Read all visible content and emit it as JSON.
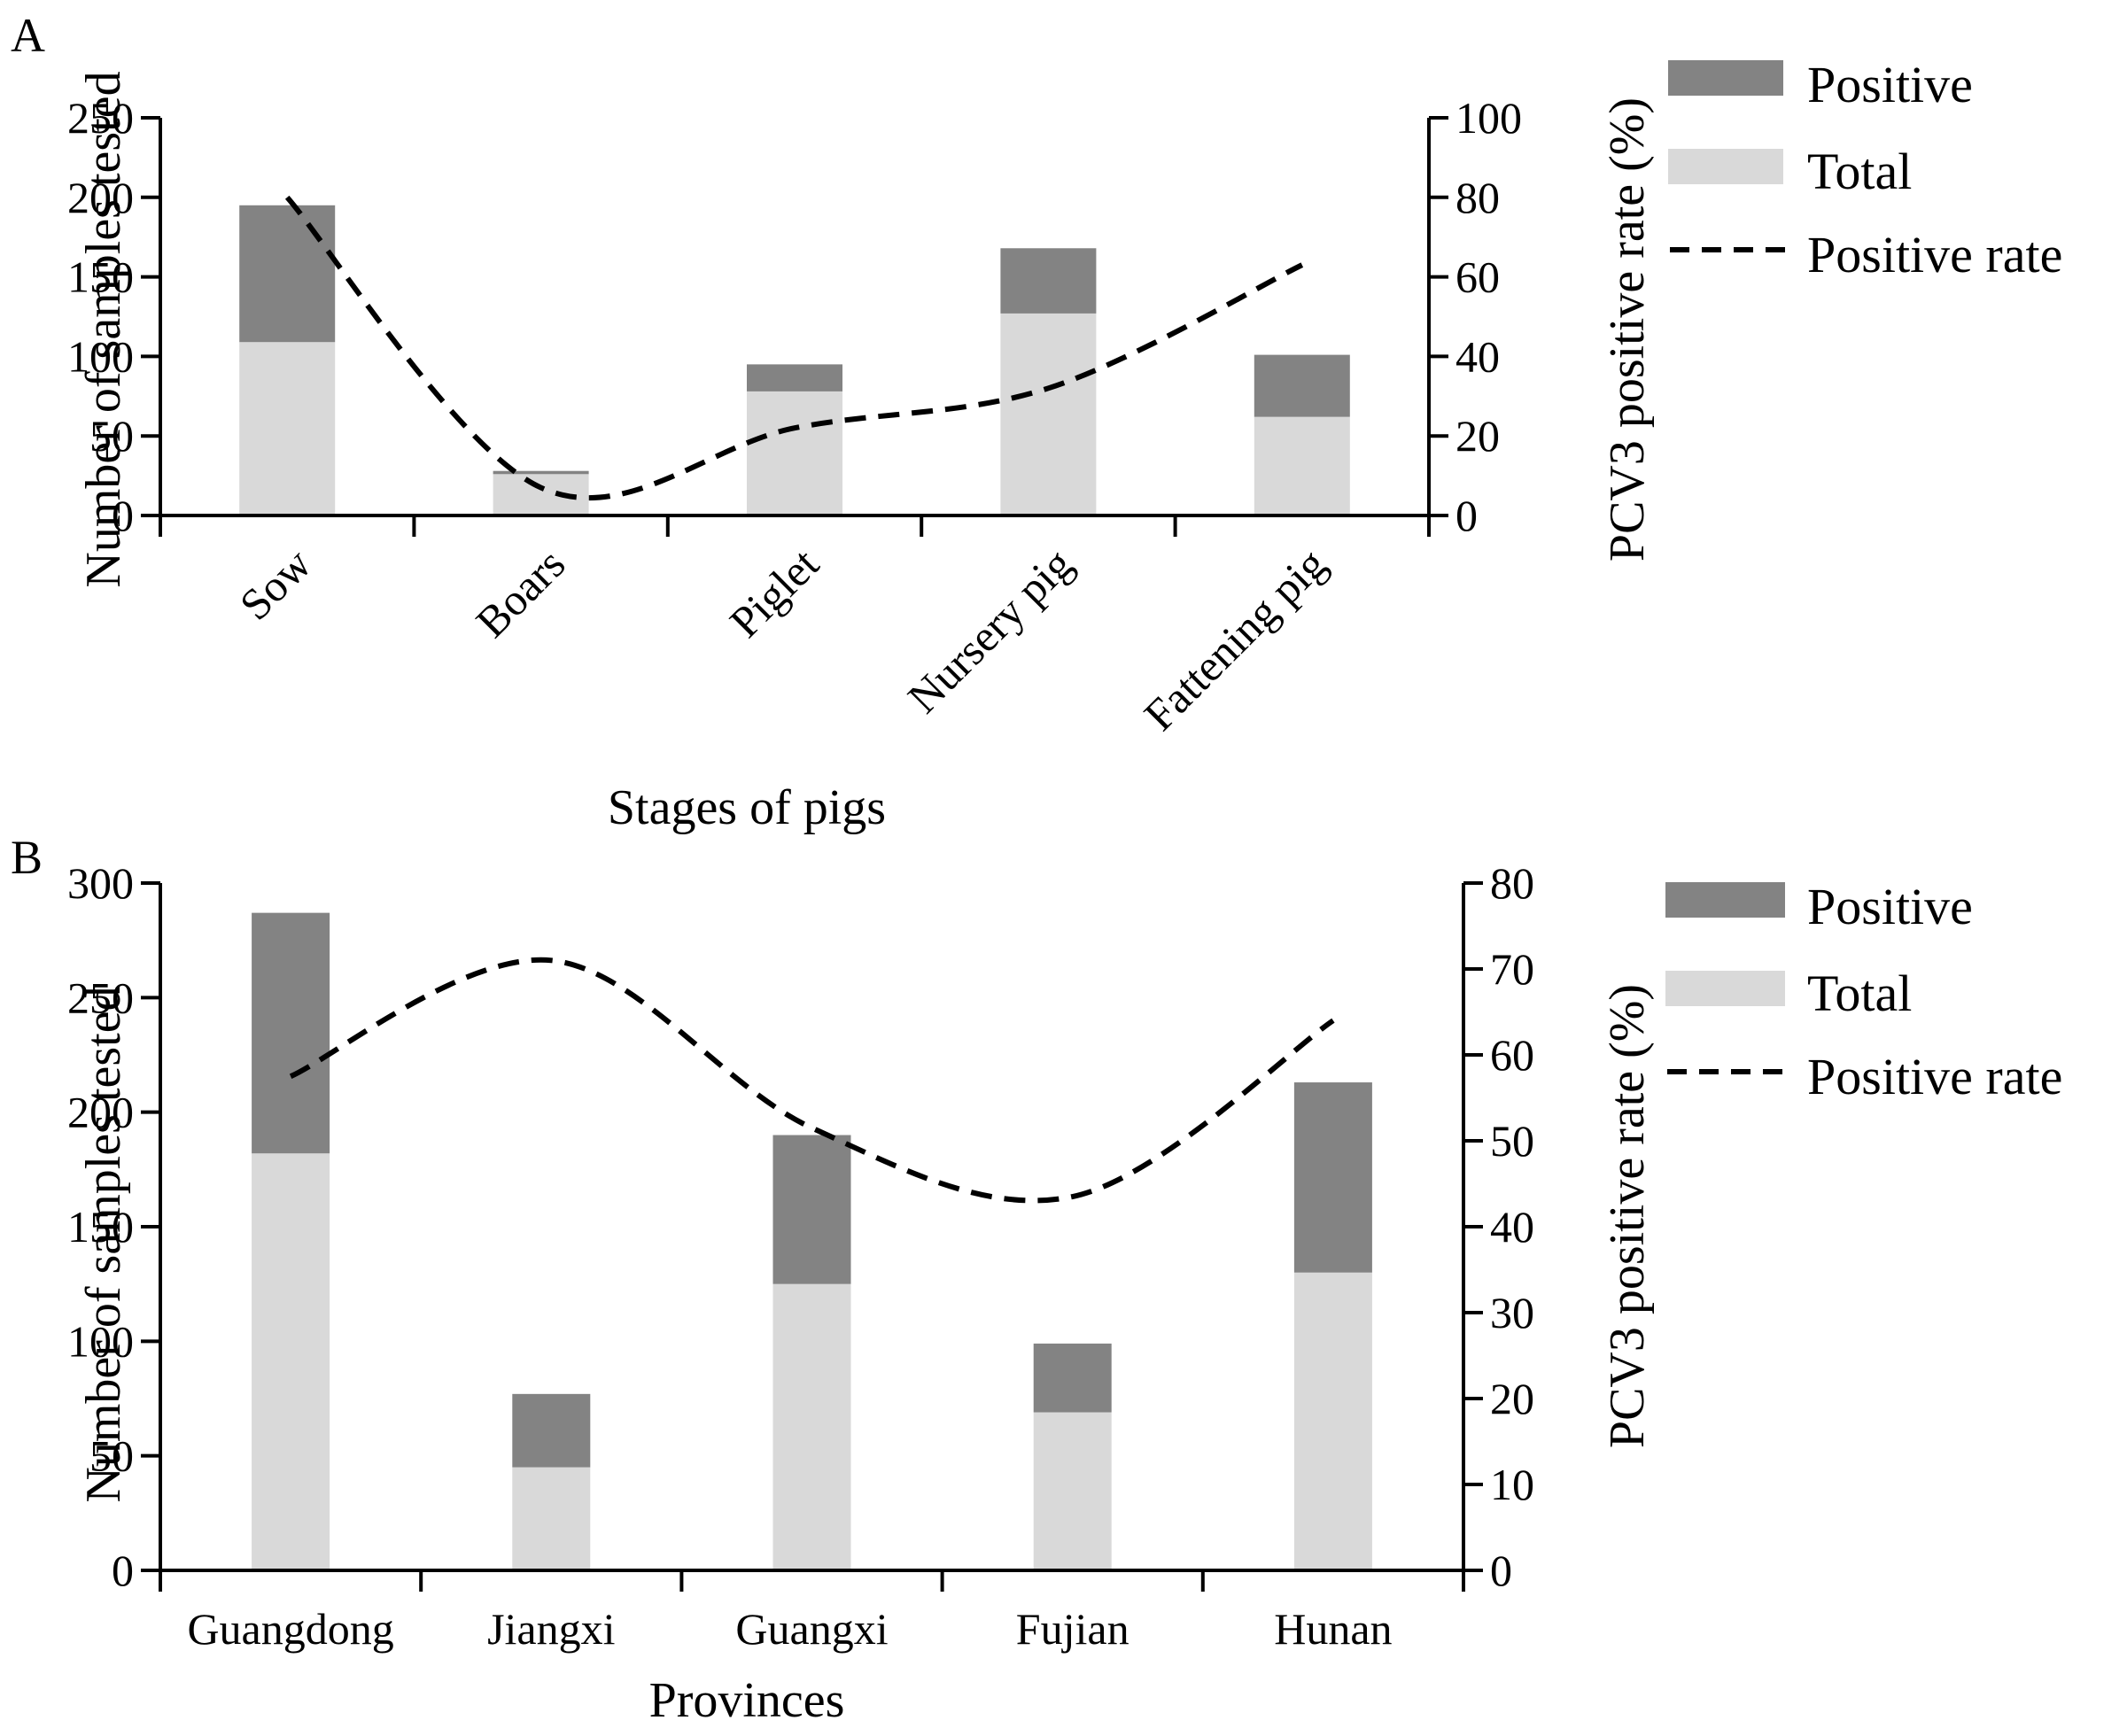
{
  "colors": {
    "positive": "#838383",
    "total": "#d9d9d9",
    "rate_line": "#000000",
    "axis": "#000000"
  },
  "legend": {
    "positive": "Positive",
    "total": "Total",
    "rate": "Positive rate"
  },
  "chart_data": [
    {
      "panel": "A",
      "type": "bar",
      "stacked": true,
      "title": "",
      "xlabel": "Stages of pigs",
      "ylabel": "Number of samples tested",
      "y2label": "PCV3 positive rate (%)",
      "categories": [
        "Sow",
        "Boars",
        "Piglet",
        "Nursery pig",
        "Fattening pig"
      ],
      "ylim": [
        0,
        250
      ],
      "yticks": [
        "0",
        "50",
        "100",
        "150",
        "200",
        "250"
      ],
      "y2lim": [
        0,
        100
      ],
      "y2ticks": [
        "0",
        "20",
        "40",
        "60",
        "80",
        "100"
      ],
      "x_tick_rotation": "rotated -45",
      "series": [
        {
          "name": "Total",
          "type": "bar",
          "axis": "left",
          "values": [
            109,
            26,
            78,
            127,
            62
          ]
        },
        {
          "name": "Positive",
          "type": "bar",
          "axis": "left",
          "stacked_on": "Total",
          "values": [
            86,
            2,
            17,
            41,
            39
          ]
        },
        {
          "name": "Positive rate",
          "type": "line",
          "style": "dashed",
          "axis": "right",
          "values": [
            80,
            7,
            22,
            32,
            63
          ]
        }
      ],
      "legend_position": "right",
      "grid": false
    },
    {
      "panel": "B",
      "type": "bar",
      "stacked": true,
      "title": "",
      "xlabel": "Provinces",
      "ylabel": "Number of samples tested",
      "y2label": "PCV3 positive rate (%)",
      "categories": [
        "Guangdong",
        "Jiangxi",
        "Guangxi",
        "Fujian",
        "Hunan"
      ],
      "ylim": [
        0,
        300
      ],
      "yticks": [
        "0",
        "50",
        "100",
        "150",
        "200",
        "250",
        "300"
      ],
      "y2lim": [
        0,
        80
      ],
      "y2ticks": [
        "0",
        "10",
        "20",
        "30",
        "40",
        "50",
        "60",
        "70",
        "80"
      ],
      "x_tick_rotation": "horizontal",
      "series": [
        {
          "name": "Total",
          "type": "bar",
          "axis": "left",
          "values": [
            182,
            45,
            125,
            69,
            130
          ]
        },
        {
          "name": "Positive",
          "type": "bar",
          "axis": "left",
          "stacked_on": "Total",
          "values": [
            105,
            32,
            65,
            30,
            83
          ]
        },
        {
          "name": "Positive rate",
          "type": "line",
          "style": "dashed",
          "axis": "right",
          "values": [
            57.5,
            71,
            51.5,
            43.5,
            64
          ]
        }
      ],
      "legend_position": "right",
      "grid": false
    }
  ]
}
